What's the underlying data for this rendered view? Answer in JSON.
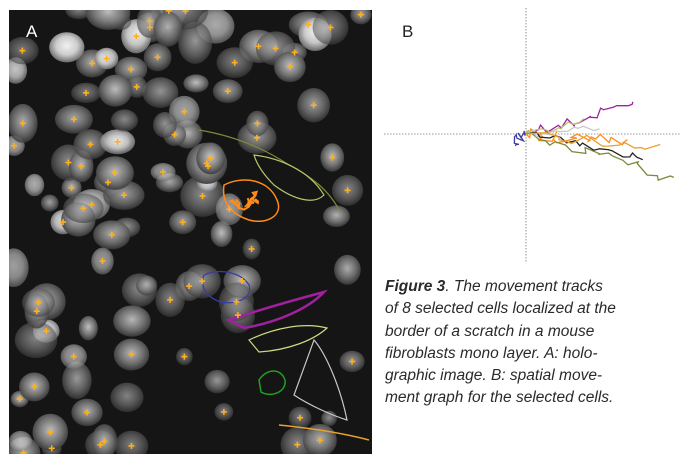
{
  "panel_a": {
    "label": "A",
    "tracked_cell_colors": [
      "#7c8a3a",
      "#b8c86a",
      "#ff8c1a",
      "#3a3aa8",
      "#a020a0",
      "#d0d880",
      "#20a020",
      "#c8c8c8",
      "#e8a030"
    ]
  },
  "panel_b": {
    "label": "B",
    "track_colors": [
      "#3a3aa8",
      "#ff8c1a",
      "#a020a0",
      "#7c8a3a",
      "#b8c86a",
      "#c8c8c8",
      "#222222",
      "#e8a030"
    ]
  },
  "caption": {
    "label": "Figure 3",
    "lines": [
      ". The movement tracks",
      "of 8 selected cells localized at the",
      "border of a scratch in a mouse",
      "fibroblasts mono layer. A: holo-",
      "graphic image. B: spatial move-",
      "ment graph for the selected cells."
    ]
  }
}
